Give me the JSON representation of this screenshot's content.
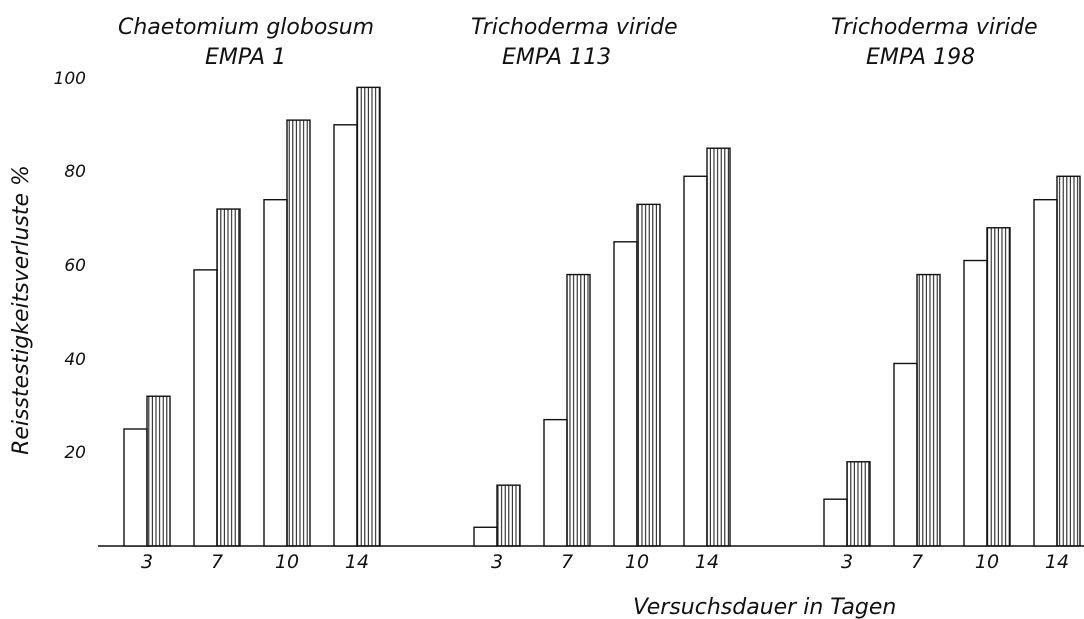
{
  "chart_data": {
    "type": "bar",
    "ylabel": "Reisstestigkeitsverluste %",
    "xlabel": "Versuchsdauer in Tagen",
    "ylim": [
      0,
      100
    ],
    "yticks": [
      "20",
      "40",
      "60",
      "80",
      "100"
    ],
    "grid": false,
    "legend": "none",
    "groups": [
      {
        "title_line1": "Chaetomium globosum",
        "title_line2": "EMPA 1",
        "categories": [
          "3",
          "7",
          "10",
          "14"
        ],
        "series": [
          {
            "style": "plain",
            "values": [
              25,
              59,
              74,
              90
            ]
          },
          {
            "style": "hatched",
            "values": [
              32,
              72,
              91,
              98
            ]
          }
        ]
      },
      {
        "title_line1": "Trichoderma viride",
        "title_line2": "EMPA 113",
        "categories": [
          "3",
          "7",
          "10",
          "14"
        ],
        "series": [
          {
            "style": "plain",
            "values": [
              4,
              27,
              65,
              79
            ]
          },
          {
            "style": "hatched",
            "values": [
              13,
              58,
              73,
              85
            ]
          }
        ]
      },
      {
        "title_line1": "Trichoderma viride",
        "title_line2": "EMPA 198",
        "categories": [
          "3",
          "7",
          "10",
          "14"
        ],
        "series": [
          {
            "style": "plain",
            "values": [
              10,
              39,
              61,
              74
            ]
          },
          {
            "style": "hatched",
            "values": [
              18,
              58,
              68,
              79
            ]
          }
        ]
      }
    ]
  }
}
